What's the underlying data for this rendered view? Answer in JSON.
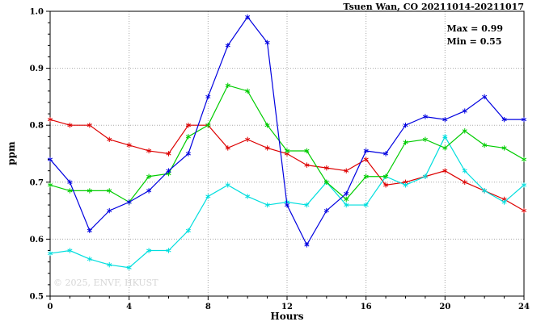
{
  "header": {
    "title": "Tsuen Wan, CO 20211014-20211017"
  },
  "stats": {
    "max_label": "Max = 0.99",
    "min_label": "Min = 0.55"
  },
  "watermark": "© 2025, ENVF, HKUST",
  "chart_data": {
    "type": "line",
    "title": "Tsuen Wan, CO 20211014-20211017",
    "xlabel": "Hours",
    "ylabel": "ppm",
    "xlim": [
      0,
      24
    ],
    "ylim": [
      0.5,
      1.0
    ],
    "xticks": [
      0,
      4,
      8,
      12,
      16,
      20,
      24
    ],
    "yticks": [
      0.5,
      0.6,
      0.7,
      0.8,
      0.9,
      1.0
    ],
    "grid": "dotted",
    "marker": "asterisk",
    "legend_position": "none",
    "max": 0.99,
    "min": 0.55,
    "x": [
      0,
      1,
      2,
      3,
      4,
      5,
      6,
      7,
      8,
      9,
      10,
      11,
      12,
      13,
      14,
      15,
      16,
      17,
      18,
      19,
      20,
      21,
      22,
      23,
      24
    ],
    "series": [
      {
        "name": "red",
        "color": "#dd0000",
        "values": [
          0.81,
          0.8,
          0.8,
          0.775,
          0.765,
          0.755,
          0.75,
          0.8,
          0.8,
          0.76,
          0.775,
          0.76,
          0.75,
          0.73,
          0.725,
          0.72,
          0.74,
          0.695,
          0.7,
          0.71,
          0.72,
          0.7,
          0.685,
          0.67,
          0.65
        ]
      },
      {
        "name": "cyan",
        "color": "#00dede",
        "values": [
          0.575,
          0.58,
          0.565,
          0.555,
          0.55,
          0.58,
          0.58,
          0.615,
          0.675,
          0.695,
          0.675,
          0.66,
          0.665,
          0.66,
          0.7,
          0.66,
          0.66,
          0.71,
          0.695,
          0.71,
          0.78,
          0.72,
          0.685,
          0.665,
          0.695
        ]
      },
      {
        "name": "green",
        "color": "#00cc00",
        "values": [
          0.695,
          0.685,
          0.685,
          0.685,
          0.665,
          0.71,
          0.715,
          0.78,
          0.8,
          0.87,
          0.86,
          0.8,
          0.755,
          0.755,
          0.7,
          0.67,
          0.71,
          0.71,
          0.77,
          0.775,
          0.76,
          0.79,
          0.765,
          0.76,
          0.74
        ]
      },
      {
        "name": "blue",
        "color": "#0000e0",
        "values": [
          0.74,
          0.7,
          0.615,
          0.65,
          0.665,
          0.685,
          0.72,
          0.75,
          0.85,
          0.94,
          0.99,
          0.945,
          0.66,
          0.59,
          0.65,
          0.68,
          0.755,
          0.75,
          0.8,
          0.815,
          0.81,
          0.825,
          0.85,
          0.81,
          0.81
        ]
      }
    ]
  }
}
